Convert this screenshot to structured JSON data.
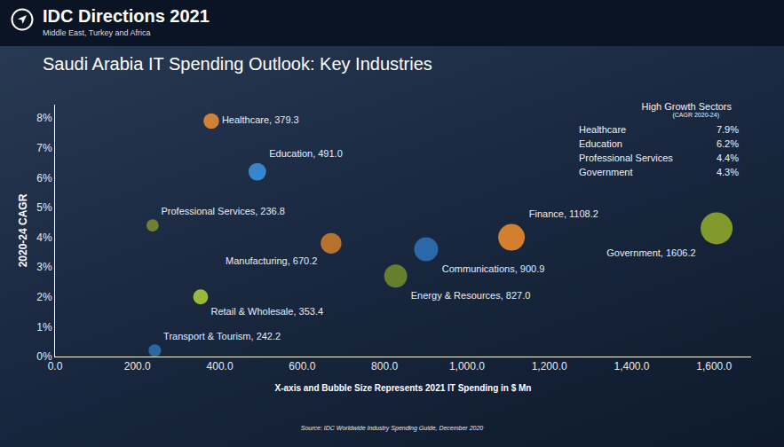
{
  "header": {
    "title": "IDC Directions 2021",
    "subtitle": "Middle East, Turkey and Africa"
  },
  "chart_data": {
    "type": "scatter",
    "title": "Saudi Arabia IT Spending Outlook: Key Industries",
    "x_label": "X-axis and Bubble Size Represents 2021 IT Spending in $ Mn",
    "y_label": "2020-24 CAGR",
    "labels": [
      "Healthcare, 379.3",
      "Education, 491.0",
      "Professional Services, 236.8",
      "Manufacturing, 670.2",
      "Finance, 1108.2",
      "Communications, 900.9",
      "Government, 1606.2",
      "Energy & Resources, 827.0",
      "Retail & Wholesale, 353.4",
      "Transport & Tourism, 242.2"
    ],
    "x": [
      379.3,
      491.0,
      236.8,
      670.2,
      1108.2,
      900.9,
      1606.2,
      827.0,
      353.4,
      242.2
    ],
    "values": [
      7.9,
      6.2,
      4.4,
      3.8,
      4.0,
      3.6,
      4.3,
      2.7,
      2.0,
      0.2
    ],
    "sizes": [
      379.3,
      491.0,
      236.8,
      670.2,
      1108.2,
      900.9,
      1606.2,
      827.0,
      353.4,
      242.2
    ],
    "colors": [
      "#e38b35",
      "#3b8fd9",
      "#7a8a2e",
      "#c87a2a",
      "#e8892c",
      "#2d6fb5",
      "#8ea62e",
      "#6e8a2b",
      "#a8c83a",
      "#2e6eb0"
    ],
    "xlim": [
      0,
      1690
    ],
    "ylim": [
      0,
      8.45
    ],
    "xticks": [
      {
        "value": 0,
        "label": "0.0"
      },
      {
        "value": 200,
        "label": "200.0"
      },
      {
        "value": 400,
        "label": "400.0"
      },
      {
        "value": 600,
        "label": "600.0"
      },
      {
        "value": 800,
        "label": "800.0"
      },
      {
        "value": 1000,
        "label": "1,000.0"
      },
      {
        "value": 1200,
        "label": "1,200.0"
      },
      {
        "value": 1400,
        "label": "1,400.0"
      },
      {
        "value": 1600,
        "label": "1,600.0"
      }
    ],
    "yticks": [
      {
        "value": 0,
        "label": "0%"
      },
      {
        "value": 1,
        "label": "1%"
      },
      {
        "value": 2,
        "label": "2%"
      },
      {
        "value": 3,
        "label": "3%"
      },
      {
        "value": 4,
        "label": "4%"
      },
      {
        "value": 5,
        "label": "5%"
      },
      {
        "value": 6,
        "label": "6%"
      },
      {
        "value": 7,
        "label": "7%"
      },
      {
        "value": 8,
        "label": "8%"
      }
    ],
    "grid": false,
    "inset": {
      "title": "High Growth Sectors",
      "subtitle": "(CAGR 2020-24)",
      "rows": [
        [
          "Healthcare",
          "7.9%"
        ],
        [
          "Education",
          "6.2%"
        ],
        [
          "Professional Services",
          "4.4%"
        ],
        [
          "Government",
          "4.3%"
        ]
      ]
    },
    "source": "Source: IDC Worldwide Industry Spending Guide, December 2020"
  }
}
